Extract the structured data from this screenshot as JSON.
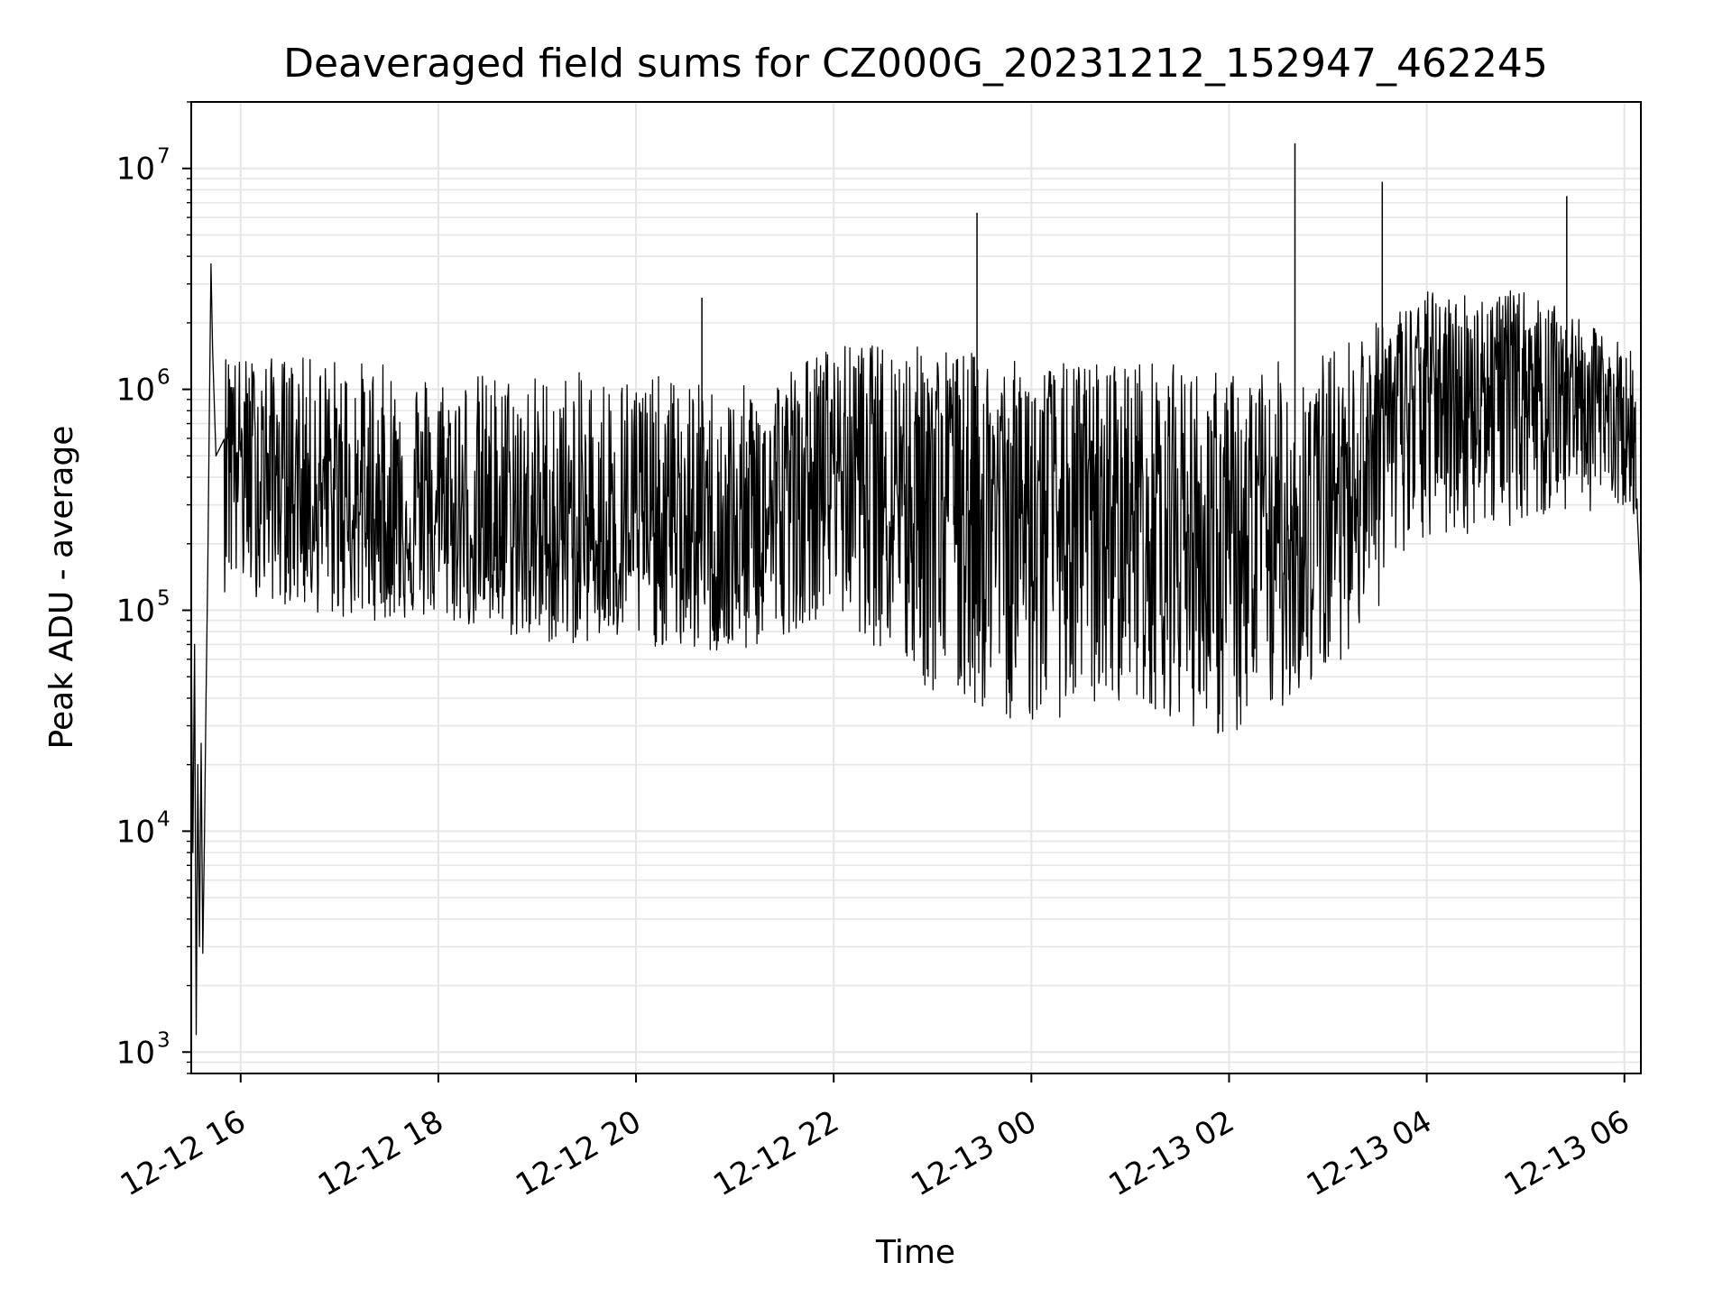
{
  "chart_data": {
    "type": "line",
    "title": "Deaveraged field sums for CZ000G_20231212_152947_462245",
    "xlabel": "Time",
    "ylabel": "Peak ADU - average",
    "yscale": "log",
    "ylim": [
      800,
      20000000
    ],
    "xlim": [
      "2023-12-12 15:30",
      "2023-12-13 06:10"
    ],
    "grid": true,
    "line_color": "#000000",
    "grid_color": "#e6e6e6",
    "x_ticks": [
      {
        "value": "2023-12-12 16:00",
        "label": "12-12 16"
      },
      {
        "value": "2023-12-12 18:00",
        "label": "12-12 18"
      },
      {
        "value": "2023-12-12 20:00",
        "label": "12-12 20"
      },
      {
        "value": "2023-12-12 22:00",
        "label": "12-12 22"
      },
      {
        "value": "2023-12-13 00:00",
        "label": "12-13 00"
      },
      {
        "value": "2023-12-13 02:00",
        "label": "12-13 02"
      },
      {
        "value": "2023-12-13 04:00",
        "label": "12-13 04"
      },
      {
        "value": "2023-12-13 06:00",
        "label": "12-13 06"
      }
    ],
    "y_ticks": [
      {
        "value": 1000,
        "base": "10",
        "exp": "3"
      },
      {
        "value": 10000,
        "base": "10",
        "exp": "4"
      },
      {
        "value": 100000,
        "base": "10",
        "exp": "5"
      },
      {
        "value": 1000000,
        "base": "10",
        "exp": "6"
      },
      {
        "value": 10000000,
        "base": "10",
        "exp": "7"
      }
    ],
    "series": [
      {
        "points": [
          [
            "2023-12-12 15:30",
            80000
          ],
          [
            "2023-12-12 15:31",
            8000
          ],
          [
            "2023-12-12 15:32",
            70000
          ],
          [
            "2023-12-12 15:33",
            1200
          ],
          [
            "2023-12-12 15:34",
            20000
          ],
          [
            "2023-12-12 15:35",
            3000
          ],
          [
            "2023-12-12 15:36",
            25000
          ],
          [
            "2023-12-12 15:37",
            2800
          ],
          [
            "2023-12-12 15:38",
            9000
          ],
          [
            "2023-12-12 15:39",
            40000
          ],
          [
            "2023-12-12 15:40",
            150000
          ],
          [
            "2023-12-12 15:41",
            800000
          ],
          [
            "2023-12-12 15:42",
            3700000
          ],
          [
            "2023-12-12 15:43",
            1500000
          ],
          [
            "2023-12-12 15:45",
            500000
          ],
          [
            "2023-12-12 15:50",
            1200000
          ],
          [
            "2023-12-12 16:00",
            500000
          ],
          [
            "2023-12-12 16:30",
            400000
          ],
          [
            "2023-12-12 17:00",
            300000
          ],
          [
            "2023-12-12 17:30",
            250000
          ],
          [
            "2023-12-12 18:00",
            250000
          ],
          [
            "2023-12-12 18:30",
            220000
          ],
          [
            "2023-12-12 19:00",
            200000
          ],
          [
            "2023-12-12 19:30",
            200000
          ],
          [
            "2023-12-12 20:00",
            230000
          ],
          [
            "2023-12-12 20:30",
            220000
          ],
          [
            "2023-12-12 21:00",
            180000
          ],
          [
            "2023-12-12 21:30",
            300000
          ],
          [
            "2023-12-12 22:00",
            500000
          ],
          [
            "2023-12-12 22:30",
            500000
          ],
          [
            "2023-12-12 23:00",
            400000
          ],
          [
            "2023-12-12 23:30",
            350000
          ],
          [
            "2023-12-13 00:00",
            300000
          ],
          [
            "2023-12-13 00:30",
            250000
          ],
          [
            "2023-12-13 01:00",
            300000
          ],
          [
            "2023-12-13 01:30",
            280000
          ],
          [
            "2023-12-13 02:00",
            150000
          ],
          [
            "2023-12-13 02:30",
            200000
          ],
          [
            "2023-12-13 03:00",
            300000
          ],
          [
            "2023-12-13 03:30",
            800000
          ],
          [
            "2023-12-13 04:00",
            1000000
          ],
          [
            "2023-12-13 04:30",
            1100000
          ],
          [
            "2023-12-13 05:00",
            1200000
          ],
          [
            "2023-12-13 05:30",
            1100000
          ],
          [
            "2023-12-13 06:00",
            800000
          ],
          [
            "2023-12-13 06:10",
            120000
          ]
        ],
        "spikes": [
          [
            "2023-12-12 15:42",
            3700000
          ],
          [
            "2023-12-12 20:40",
            2600000
          ],
          [
            "2023-12-12 23:27",
            6300000
          ],
          [
            "2023-12-13 02:40",
            13000000
          ],
          [
            "2023-12-13 03:33",
            8700000
          ],
          [
            "2023-12-13 05:25",
            7500000
          ]
        ],
        "upper_envelope": [
          [
            "2023-12-12 16:00",
            1400000
          ],
          [
            "2023-12-12 17:00",
            1400000
          ],
          [
            "2023-12-12 18:00",
            1200000
          ],
          [
            "2023-12-12 19:00",
            1200000
          ],
          [
            "2023-12-12 20:00",
            1200000
          ],
          [
            "2023-12-12 21:00",
            1000000
          ],
          [
            "2023-12-12 22:00",
            1600000
          ],
          [
            "2023-12-12 23:00",
            1600000
          ],
          [
            "2023-12-13 00:00",
            1300000
          ],
          [
            "2023-12-13 01:00",
            1400000
          ],
          [
            "2023-12-13 02:00",
            1200000
          ],
          [
            "2023-12-13 03:00",
            1500000
          ],
          [
            "2023-12-13 04:00",
            2800000
          ],
          [
            "2023-12-13 05:00",
            2800000
          ],
          [
            "2023-12-13 06:00",
            1600000
          ]
        ],
        "lower_envelope": [
          [
            "2023-12-12 16:00",
            120000
          ],
          [
            "2023-12-12 17:00",
            90000
          ],
          [
            "2023-12-12 18:00",
            90000
          ],
          [
            "2023-12-12 19:00",
            70000
          ],
          [
            "2023-12-12 20:00",
            70000
          ],
          [
            "2023-12-12 21:00",
            60000
          ],
          [
            "2023-12-12 22:00",
            100000
          ],
          [
            "2023-12-12 23:00",
            40000
          ],
          [
            "2023-12-13 00:00",
            30000
          ],
          [
            "2023-12-13 01:00",
            40000
          ],
          [
            "2023-12-13 02:00",
            25000
          ],
          [
            "2023-12-13 03:00",
            50000
          ],
          [
            "2023-12-13 04:00",
            200000
          ],
          [
            "2023-12-13 05:00",
            250000
          ],
          [
            "2023-12-13 06:00",
            300000
          ]
        ]
      }
    ]
  }
}
